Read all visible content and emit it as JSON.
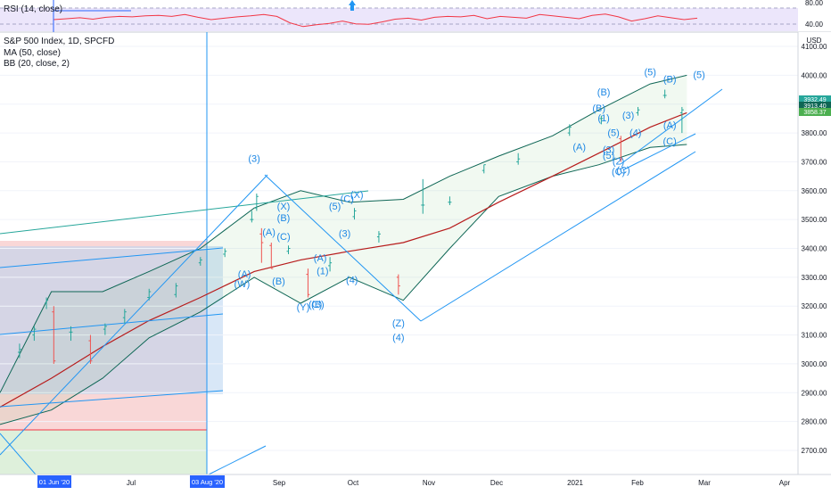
{
  "chart_data": {
    "type": "line",
    "title": "S&P 500 Index, 1D, SPCFD",
    "legend": [
      "MA (50, close)",
      "BB (20, close, 2)"
    ],
    "rsi": {
      "label": "RSI (14, close)",
      "levels": [
        "80.00",
        "40.00"
      ],
      "values": [
        55,
        57,
        59,
        56,
        60,
        62,
        61,
        63,
        64,
        62,
        66,
        60,
        55,
        58,
        61,
        63,
        66,
        62,
        48,
        40,
        44,
        47,
        52,
        46,
        45,
        50,
        56,
        58,
        54,
        60,
        62,
        61,
        64,
        57,
        62,
        60,
        58,
        66,
        63,
        60,
        57,
        64,
        67,
        61,
        52,
        57,
        63,
        59,
        55,
        58
      ]
    },
    "axis": {
      "y_ticks": [
        4100,
        4000,
        3900,
        3800,
        3700,
        3600,
        3500,
        3400,
        3300,
        3200,
        3100,
        3000,
        2900,
        2800,
        2700
      ],
      "y_tick_labels": [
        "4100.00",
        "4000.00",
        "3900.00",
        "3800.00",
        "3700.00",
        "3600.00",
        "3500.00",
        "3400.00",
        "3300.00",
        "3200.00",
        "3100.00",
        "3000.00",
        "2900.00",
        "2800.00",
        "2700.00"
      ],
      "ylim": [
        2640,
        4140
      ],
      "x_labels": [
        "Jul",
        "Sep",
        "Oct",
        "Nov",
        "Dec",
        "2021",
        "Feb",
        "Mar",
        "Apr"
      ],
      "x_highlight_labels": [
        "01 Jun '20",
        "03 Aug '20"
      ],
      "currency": "USD",
      "price_tags": [
        "3932.49",
        "3913.40",
        "3858.37"
      ]
    },
    "series": [
      {
        "name": "MA (50, close)",
        "x": [
          "2020-05-20",
          "2020-06-10",
          "2020-07-01",
          "2020-07-20",
          "2020-08-10",
          "2020-09-01",
          "2020-09-20",
          "2020-10-10",
          "2020-11-01",
          "2020-11-20",
          "2020-12-10",
          "2021-01-01",
          "2021-01-20",
          "2021-02-10",
          "2021-02-25"
        ],
        "values": [
          2850,
          2950,
          3060,
          3150,
          3230,
          3320,
          3360,
          3390,
          3420,
          3470,
          3560,
          3650,
          3730,
          3820,
          3870
        ]
      },
      {
        "name": "BB (20, close, 2) upper",
        "x": [
          "2020-05-20",
          "2020-06-10",
          "2020-07-01",
          "2020-07-20",
          "2020-08-10",
          "2020-09-01",
          "2020-09-20",
          "2020-10-10",
          "2020-11-01",
          "2020-11-20",
          "2020-12-10",
          "2021-01-01",
          "2021-01-20",
          "2021-02-10",
          "2021-02-25"
        ],
        "values": [
          2900,
          3250,
          3250,
          3320,
          3400,
          3540,
          3600,
          3560,
          3570,
          3650,
          3720,
          3790,
          3880,
          3970,
          4000
        ]
      },
      {
        "name": "BB (20, close, 2) lower",
        "x": [
          "2020-05-20",
          "2020-06-10",
          "2020-07-01",
          "2020-07-20",
          "2020-08-10",
          "2020-09-01",
          "2020-09-20",
          "2020-10-10",
          "2020-11-01",
          "2020-11-20",
          "2020-12-10",
          "2021-01-01",
          "2021-01-20",
          "2021-02-10",
          "2021-02-25"
        ],
        "values": [
          2790,
          2840,
          2950,
          3090,
          3180,
          3300,
          3210,
          3300,
          3220,
          3400,
          3580,
          3650,
          3690,
          3750,
          3760
        ]
      }
    ],
    "ohlc": [
      {
        "x": "2020-05-28",
        "o": 3040,
        "h": 3070,
        "l": 3020,
        "c": 3050
      },
      {
        "x": "2020-06-03",
        "o": 3100,
        "h": 3130,
        "l": 3080,
        "c": 3120
      },
      {
        "x": "2020-06-08",
        "o": 3210,
        "h": 3230,
        "l": 3190,
        "c": 3220
      },
      {
        "x": "2020-06-11",
        "o": 3180,
        "h": 3200,
        "l": 3000,
        "c": 3010
      },
      {
        "x": "2020-06-18",
        "o": 3110,
        "h": 3130,
        "l": 3080,
        "c": 3110
      },
      {
        "x": "2020-06-26",
        "o": 3080,
        "h": 3100,
        "l": 3000,
        "c": 3010
      },
      {
        "x": "2020-07-02",
        "o": 3120,
        "h": 3140,
        "l": 3100,
        "c": 3130
      },
      {
        "x": "2020-07-10",
        "o": 3160,
        "h": 3190,
        "l": 3140,
        "c": 3180
      },
      {
        "x": "2020-07-20",
        "o": 3230,
        "h": 3260,
        "l": 3220,
        "c": 3250
      },
      {
        "x": "2020-07-31",
        "o": 3240,
        "h": 3280,
        "l": 3230,
        "c": 3270
      },
      {
        "x": "2020-08-10",
        "o": 3350,
        "h": 3370,
        "l": 3340,
        "c": 3360
      },
      {
        "x": "2020-08-20",
        "o": 3380,
        "h": 3400,
        "l": 3370,
        "c": 3390
      },
      {
        "x": "2020-08-31",
        "o": 3500,
        "h": 3530,
        "l": 3490,
        "c": 3500
      },
      {
        "x": "2020-09-02",
        "o": 3540,
        "h": 3590,
        "l": 3530,
        "c": 3580
      },
      {
        "x": "2020-09-04",
        "o": 3450,
        "h": 3470,
        "l": 3350,
        "c": 3420
      },
      {
        "x": "2020-09-08",
        "o": 3410,
        "h": 3420,
        "l": 3330,
        "c": 3330
      },
      {
        "x": "2020-09-15",
        "o": 3390,
        "h": 3410,
        "l": 3380,
        "c": 3400
      },
      {
        "x": "2020-09-23",
        "o": 3310,
        "h": 3330,
        "l": 3230,
        "c": 3240
      },
      {
        "x": "2020-10-02",
        "o": 3340,
        "h": 3370,
        "l": 3320,
        "c": 3350
      },
      {
        "x": "2020-10-12",
        "o": 3510,
        "h": 3540,
        "l": 3500,
        "c": 3530
      },
      {
        "x": "2020-10-22",
        "o": 3440,
        "h": 3460,
        "l": 3420,
        "c": 3450
      },
      {
        "x": "2020-10-30",
        "o": 3300,
        "h": 3310,
        "l": 3240,
        "c": 3270
      },
      {
        "x": "2020-11-09",
        "o": 3550,
        "h": 3640,
        "l": 3520,
        "c": 3550
      },
      {
        "x": "2020-11-20",
        "o": 3560,
        "h": 3580,
        "l": 3550,
        "c": 3560
      },
      {
        "x": "2020-12-04",
        "o": 3670,
        "h": 3690,
        "l": 3660,
        "c": 3690
      },
      {
        "x": "2020-12-18",
        "o": 3700,
        "h": 3730,
        "l": 3690,
        "c": 3710
      },
      {
        "x": "2021-01-08",
        "o": 3800,
        "h": 3830,
        "l": 3790,
        "c": 3820
      },
      {
        "x": "2021-01-21",
        "o": 3850,
        "h": 3860,
        "l": 3830,
        "c": 3850
      },
      {
        "x": "2021-01-29",
        "o": 3780,
        "h": 3790,
        "l": 3700,
        "c": 3710
      },
      {
        "x": "2021-02-05",
        "o": 3870,
        "h": 3890,
        "l": 3860,
        "c": 3880
      },
      {
        "x": "2021-02-16",
        "o": 3930,
        "h": 3950,
        "l": 3920,
        "c": 3930
      },
      {
        "x": "2021-02-23",
        "o": 3870,
        "h": 3890,
        "l": 3800,
        "c": 3880
      }
    ],
    "wave_labels": [
      {
        "text": "(3)",
        "x": "2020-09-01",
        "y": 3700
      },
      {
        "text": "(5)",
        "x": "2021-02-10",
        "y": 4000
      },
      {
        "text": "(5)",
        "x": "2021-03-02",
        "y": 3990
      },
      {
        "text": "(B)",
        "x": "2021-02-18",
        "y": 3975
      },
      {
        "text": "(B)",
        "x": "2021-01-22",
        "y": 3930
      },
      {
        "text": "(B)",
        "x": "2021-01-20",
        "y": 3875
      },
      {
        "text": "(1)",
        "x": "2021-01-22",
        "y": 3840
      },
      {
        "text": "(3)",
        "x": "2021-02-01",
        "y": 3850
      },
      {
        "text": "(A)",
        "x": "2021-02-18",
        "y": 3815
      },
      {
        "text": "(5)",
        "x": "2021-01-26",
        "y": 3790
      },
      {
        "text": "(4)",
        "x": "2021-02-04",
        "y": 3790
      },
      {
        "text": "(A)",
        "x": "2021-01-12",
        "y": 3740
      },
      {
        "text": "(3)",
        "x": "2021-01-24",
        "y": 3730
      },
      {
        "text": "(5)",
        "x": "2021-01-24",
        "y": 3710
      },
      {
        "text": "(2)",
        "x": "2021-01-28",
        "y": 3690
      },
      {
        "text": "(C)",
        "x": "2021-02-18",
        "y": 3760
      },
      {
        "text": "(C)",
        "x": "2021-01-30",
        "y": 3660
      },
      {
        "text": "(C)",
        "x": "2021-01-28",
        "y": 3655
      },
      {
        "text": "(X)",
        "x": "2020-09-13",
        "y": 3535
      },
      {
        "text": "(B)",
        "x": "2020-09-13",
        "y": 3495
      },
      {
        "text": "(A)",
        "x": "2020-09-07",
        "y": 3445
      },
      {
        "text": "(C)",
        "x": "2020-09-13",
        "y": 3430
      },
      {
        "text": "(5)",
        "x": "2020-10-04",
        "y": 3535
      },
      {
        "text": "(C)",
        "x": "2020-10-09",
        "y": 3560
      },
      {
        "text": "(X)",
        "x": "2020-10-13",
        "y": 3575
      },
      {
        "text": "(3)",
        "x": "2020-10-08",
        "y": 3440
      },
      {
        "text": "(A)",
        "x": "2020-09-28",
        "y": 3355
      },
      {
        "text": "(1)",
        "x": "2020-09-29",
        "y": 3310
      },
      {
        "text": "(A)",
        "x": "2020-08-28",
        "y": 3300
      },
      {
        "text": "(W)",
        "x": "2020-08-27",
        "y": 3265
      },
      {
        "text": "(B)",
        "x": "2020-09-11",
        "y": 3275
      },
      {
        "text": "(4)",
        "x": "2020-10-11",
        "y": 3280
      },
      {
        "text": "(C)",
        "x": "2020-09-26",
        "y": 3195
      },
      {
        "text": "(B)",
        "x": "2020-09-27",
        "y": 3195
      },
      {
        "text": "(Y)",
        "x": "2020-09-21",
        "y": 3185
      },
      {
        "text": "(Z)",
        "x": "2020-10-30",
        "y": 3130
      },
      {
        "text": "(4)",
        "x": "2020-10-30",
        "y": 3080
      }
    ]
  }
}
